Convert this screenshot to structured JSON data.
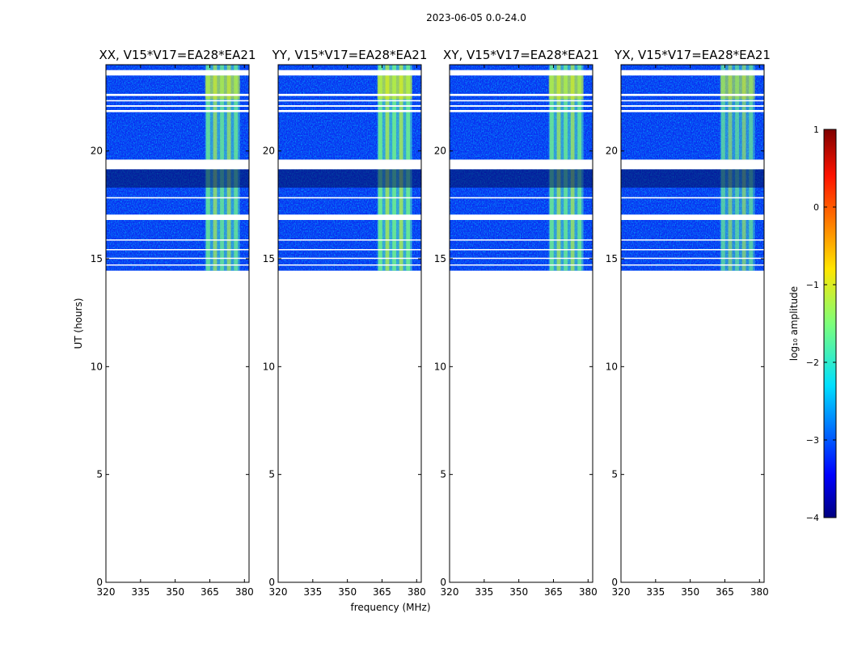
{
  "figure": {
    "title": "2023-06-05 0.0-24.0"
  },
  "chart_data": {
    "type": "heatmap",
    "title": "2023-06-05 0.0-24.0",
    "xlabel": "frequency (MHz)",
    "ylabel": "UT (hours)",
    "xlim": [
      320,
      382
    ],
    "ylim": [
      0,
      24
    ],
    "x_ticks": [
      320,
      335,
      350,
      365,
      380
    ],
    "y_ticks": [
      0,
      5,
      10,
      15,
      20
    ],
    "data_extent_hours": [
      14.45,
      24.0
    ],
    "rfi_band_mhz": [
      363,
      378
    ],
    "flagged_rows_hours": [
      [
        23.5,
        23.75
      ],
      [
        22.55,
        22.65
      ],
      [
        22.3,
        22.36
      ],
      [
        22.05,
        22.12
      ],
      [
        21.8,
        21.9
      ],
      [
        19.15,
        19.6
      ],
      [
        17.8,
        17.86
      ],
      [
        16.8,
        17.05
      ],
      [
        15.85,
        15.9
      ],
      [
        15.4,
        15.45
      ],
      [
        15.0,
        15.05
      ],
      [
        14.7,
        14.74
      ]
    ],
    "panels": [
      {
        "title": "XX, V15*V17=EA28*EA21",
        "intensity": 1.0
      },
      {
        "title": "YY, V15*V17=EA28*EA21",
        "intensity": 1.15
      },
      {
        "title": "XY, V15*V17=EA28*EA21",
        "intensity": 1.05
      },
      {
        "title": "YX, V15*V17=EA28*EA21",
        "intensity": 0.85
      }
    ],
    "colorbar": {
      "label": "log₁₀ amplitude",
      "range": [
        -4,
        1
      ],
      "ticks": [
        "1",
        "0",
        "−1",
        "−2",
        "−3",
        "−4"
      ],
      "colormap": "jet"
    }
  }
}
